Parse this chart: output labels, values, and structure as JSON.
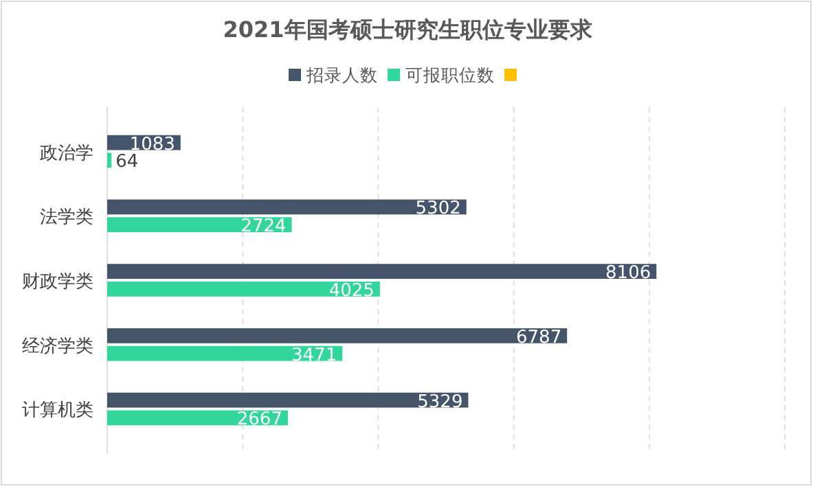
{
  "chart_data": {
    "type": "bar",
    "orientation": "horizontal",
    "title": "2021年国考硕士研究生职位专业要求",
    "categories": [
      "政治学",
      "法学类",
      "财政学类",
      "经济学类",
      "计算机类"
    ],
    "series": [
      {
        "name": "招录人数",
        "color": "#44546a",
        "values": [
          1083,
          5302,
          8106,
          6787,
          5329
        ]
      },
      {
        "name": "可报职位数",
        "color": "#33d69a",
        "values": [
          64,
          2724,
          4025,
          3471,
          2667
        ]
      }
    ],
    "xlim": [
      0,
      10000
    ],
    "xticks": [
      {
        "value": 0,
        "label": null
      },
      {
        "value": 2000,
        "label": null
      },
      {
        "value": 4000,
        "label": null
      },
      {
        "value": 6000,
        "label": null
      },
      {
        "value": 8000,
        "label": null
      },
      {
        "value": 10000,
        "label": null
      }
    ],
    "tick_labels": "y",
    "grid": "x",
    "legend": "top",
    "data_labels": true
  }
}
